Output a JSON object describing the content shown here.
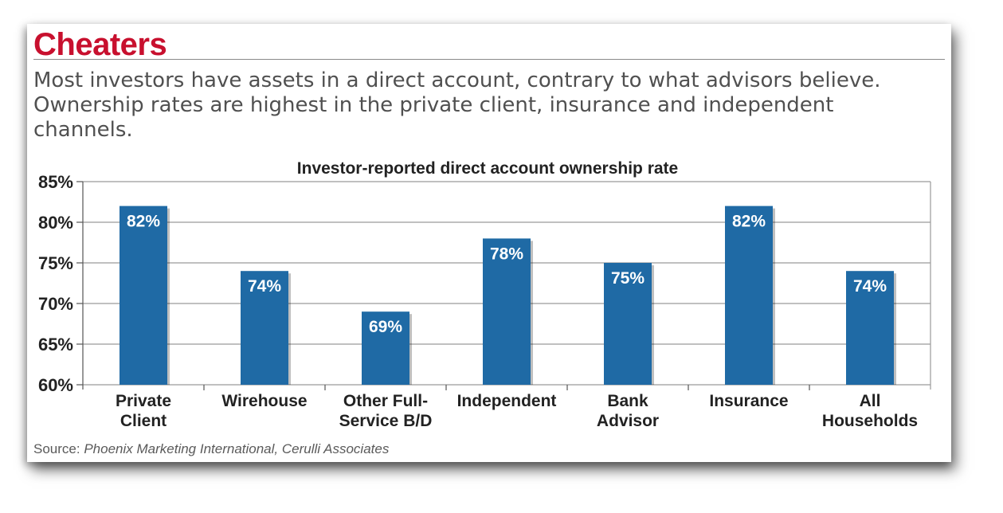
{
  "header": {
    "title": "Cheaters",
    "subtitle": "Most investors have assets in a direct account, contrary to what advisors believe. Ownership rates are highest in the private client, insurance and independent channels."
  },
  "source": {
    "label": "Source:",
    "text": "Phoenix Marketing International, Cerulli Associates"
  },
  "colors": {
    "title": "#c8102e",
    "bar": "#1f6aa5",
    "grid": "#9a9a9a"
  },
  "chart_data": {
    "type": "bar",
    "title": "Investor-reported direct account ownership rate",
    "categories": [
      [
        "Private",
        "Client"
      ],
      [
        "Wirehouse"
      ],
      [
        "Other Full-",
        "Service B/D"
      ],
      [
        "Independent"
      ],
      [
        "Bank",
        "Advisor"
      ],
      [
        "Insurance"
      ],
      [
        "All",
        "Households"
      ]
    ],
    "values": [
      82,
      74,
      69,
      78,
      75,
      82,
      74
    ],
    "data_labels": [
      "82%",
      "74%",
      "69%",
      "78%",
      "75%",
      "82%",
      "74%"
    ],
    "yticks": [
      60,
      65,
      70,
      75,
      80,
      85
    ],
    "ytick_labels": [
      "60%",
      "65%",
      "70%",
      "75%",
      "80%",
      "85%"
    ],
    "ylim": [
      60,
      85
    ],
    "grid": true,
    "xlabel": "",
    "ylabel": ""
  }
}
